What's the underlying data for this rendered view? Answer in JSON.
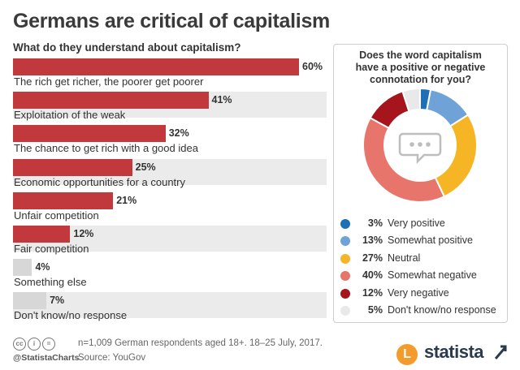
{
  "title": "Germans are critical of capitalism",
  "subtitle": "What do they understand about capitalism?",
  "colors": {
    "highlight": "#c1393d",
    "muted": "#d7d7d7",
    "track": "#ebebeb"
  },
  "chart_data": [
    {
      "type": "bar",
      "orientation": "horizontal",
      "title": "What do they understand about capitalism?",
      "categories": [
        "The rich get richer, the poorer get poorer",
        "Exploitation of the weak",
        "The chance to get rich with a good idea",
        "Economic opportunities for a country",
        "Unfair competition",
        "Fair competition",
        "Something else",
        "Don't know/no response"
      ],
      "values": [
        60,
        41,
        32,
        25,
        21,
        12,
        4,
        7
      ],
      "value_labels": [
        "60%",
        "41%",
        "32%",
        "25%",
        "21%",
        "12%",
        "4%",
        "7%"
      ],
      "xlim": [
        0,
        60
      ],
      "grid": false
    },
    {
      "type": "pie",
      "style": "donut",
      "title": "Does the word capitalism have a positive or negative connotation for you?",
      "title_lines": [
        "Does the word capitalism",
        "have a positive or negative",
        "connotation for you?"
      ],
      "slices": [
        {
          "label": "Very positive",
          "value": 3,
          "value_label": "3%",
          "color": "#1f6fb5"
        },
        {
          "label": "Somewhat positive",
          "value": 13,
          "value_label": "13%",
          "color": "#6fa3d8"
        },
        {
          "label": "Neutral",
          "value": 27,
          "value_label": "27%",
          "color": "#f5b524"
        },
        {
          "label": "Somewhat negative",
          "value": 40,
          "value_label": "40%",
          "color": "#e8756b"
        },
        {
          "label": "Very negative",
          "value": 12,
          "value_label": "12%",
          "color": "#a6151b"
        },
        {
          "label": "Don't know/no response",
          "value": 5,
          "value_label": "5%",
          "color": "#e9e9e9"
        }
      ],
      "legend_position": "bottom",
      "center_icon": "speech-bubble-icon"
    }
  ],
  "footer": {
    "license_icons": [
      "cc-icon",
      "by-icon",
      "nd-icon"
    ],
    "handle": "@StatistaCharts",
    "note": "n=1,009 German respondents aged 18+. 18–25 July, 2017.",
    "source": "Source: YouGov",
    "logo_letter": "L",
    "brand": "statista"
  }
}
